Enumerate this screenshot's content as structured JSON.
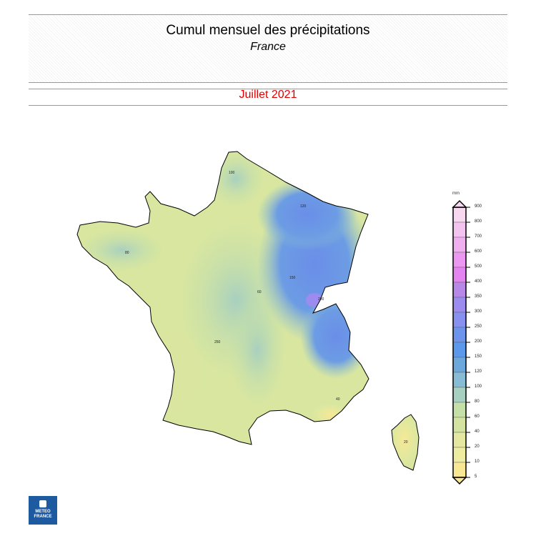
{
  "header": {
    "title": "Cumul mensuel des précipitations",
    "subtitle": "France",
    "period": "Juillet 2021"
  },
  "legend": {
    "unit": "mm",
    "ticks": [
      "900",
      "800",
      "700",
      "600",
      "500",
      "400",
      "350",
      "300",
      "250",
      "200",
      "150",
      "120",
      "100",
      "80",
      "60",
      "40",
      "20",
      "10",
      "5"
    ],
    "colors": [
      "#f8d8f0",
      "#f4c4f0",
      "#f0b0f0",
      "#ec98f0",
      "#e484f0",
      "#b888e8",
      "#9c8cf0",
      "#8890f0",
      "#6c94ec",
      "#5c98ec",
      "#6ca8dc",
      "#88bcd4",
      "#a8d0c0",
      "#c4e0a8",
      "#d4e4a0",
      "#e4e8a0",
      "#eeeca0",
      "#f8e894"
    ]
  },
  "map": {
    "region": "France",
    "contour_labels": [
      "100",
      "80",
      "60",
      "120",
      "150",
      "200",
      "250",
      "40",
      "20"
    ]
  },
  "logo": {
    "line1": "METEO",
    "line2": "FRANCE"
  }
}
